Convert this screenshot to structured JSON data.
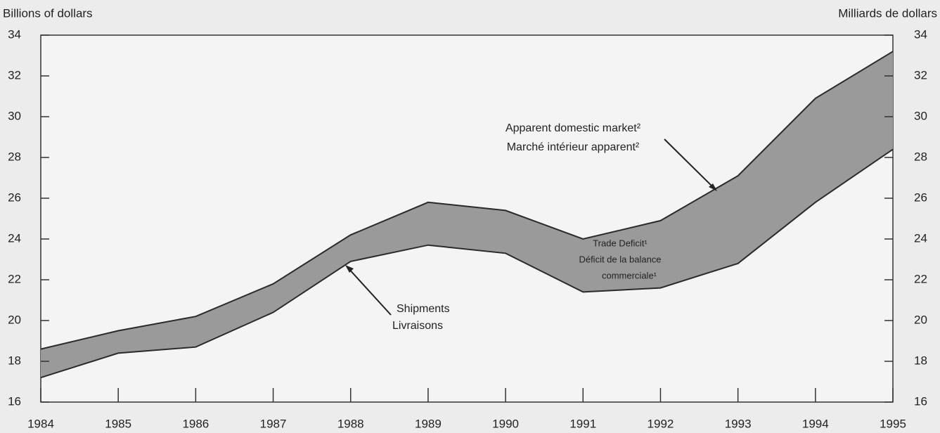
{
  "chart_data": {
    "type": "band",
    "y_label": "Billions of dollars",
    "y2_label": "Milliards de dollars",
    "x": [
      1984,
      1985,
      1986,
      1987,
      1988,
      1989,
      1990,
      1991,
      1992,
      1993,
      1994,
      1995
    ],
    "xlim": [
      1984,
      1995
    ],
    "xticks": [
      1984,
      1985,
      1986,
      1987,
      1988,
      1989,
      1990,
      1991,
      1992,
      1993,
      1994,
      1995
    ],
    "ylim": [
      16,
      34
    ],
    "yticks": [
      16,
      18,
      20,
      22,
      24,
      26,
      28,
      30,
      32,
      34
    ],
    "y2lim": [
      16,
      34
    ],
    "y2ticks": [
      16,
      18,
      20,
      22,
      24,
      26,
      28,
      30,
      32,
      34
    ],
    "series": [
      {
        "color": "#2a2a2a",
        "values": [
          18.6,
          19.5,
          20.2,
          21.8,
          24.2,
          25.8,
          25.4,
          24.0,
          24.9,
          27.1,
          30.9,
          33.2
        ]
      },
      {
        "color": "#2a2a2a",
        "values": [
          17.2,
          18.4,
          18.7,
          20.4,
          22.9,
          23.7,
          23.3,
          21.4,
          21.6,
          22.8,
          25.8,
          28.4
        ]
      }
    ],
    "fill_color": "#9a9a9a",
    "annotations": {
      "market": [
        "Apparent domestic market²",
        "Marché intérieur apparent²"
      ],
      "deficit": [
        "Trade Deficit¹",
        "Déficit de la balance",
        "commerciale¹"
      ],
      "shipments": [
        "Shipments",
        "Livraisons"
      ]
    }
  }
}
